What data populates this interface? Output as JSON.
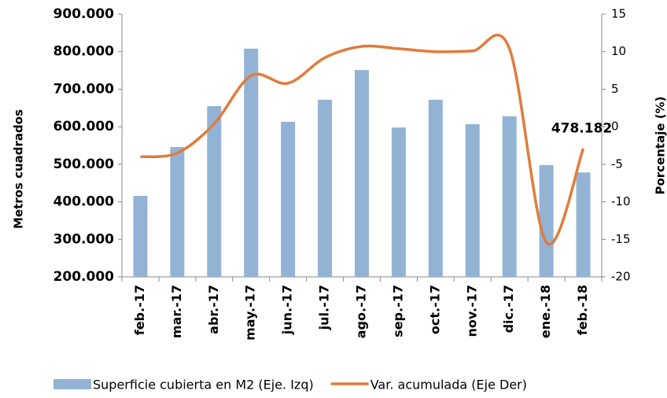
{
  "chart_data": {
    "type": "bar-line",
    "y_label": "Metros cuadrados",
    "y2_label": "Porcentaje (%)",
    "categories": [
      "feb.-17",
      "mar.-17",
      "abr.-17",
      "may.-17",
      "jun.-17",
      "jul.-17",
      "ago.-17",
      "sep.-17",
      "oct.-17",
      "nov.-17",
      "dic.-17",
      "ene.-18",
      "feb.-18"
    ],
    "series": [
      {
        "name": "Superficie cubierta en M2 (Eje. Izq)",
        "type": "bar",
        "color": "#93b3d5",
        "values": [
          416000,
          546000,
          655000,
          808000,
          613000,
          672000,
          751000,
          598000,
          672000,
          607000,
          628000,
          498000,
          478182
        ],
        "value_labels": [
          null,
          null,
          null,
          null,
          null,
          null,
          null,
          null,
          null,
          null,
          null,
          null,
          "478.182"
        ]
      },
      {
        "name": "Var. acumulada (Eje Der)",
        "type": "line",
        "color": "#e07c3c",
        "axis": "y2",
        "values": [
          -4.0,
          -3.5,
          0.4,
          6.8,
          5.8,
          9.2,
          10.7,
          10.4,
          10.0,
          10.1,
          10.4,
          -15.4,
          -2.9
        ]
      }
    ],
    "ylim": [
      200000,
      900000
    ],
    "yticks": [
      {
        "value": 200000,
        "label": "200.000"
      },
      {
        "value": 300000,
        "label": "300.000"
      },
      {
        "value": 400000,
        "label": "400.000"
      },
      {
        "value": 500000,
        "label": "500.000"
      },
      {
        "value": 600000,
        "label": "600.000"
      },
      {
        "value": 700000,
        "label": "700.000"
      },
      {
        "value": 800000,
        "label": "800.000"
      },
      {
        "value": 900000,
        "label": "900.000"
      }
    ],
    "y2lim": [
      -20,
      15
    ],
    "y2ticks": [
      -20,
      -15,
      -10,
      -5,
      0,
      5,
      10,
      15
    ]
  }
}
